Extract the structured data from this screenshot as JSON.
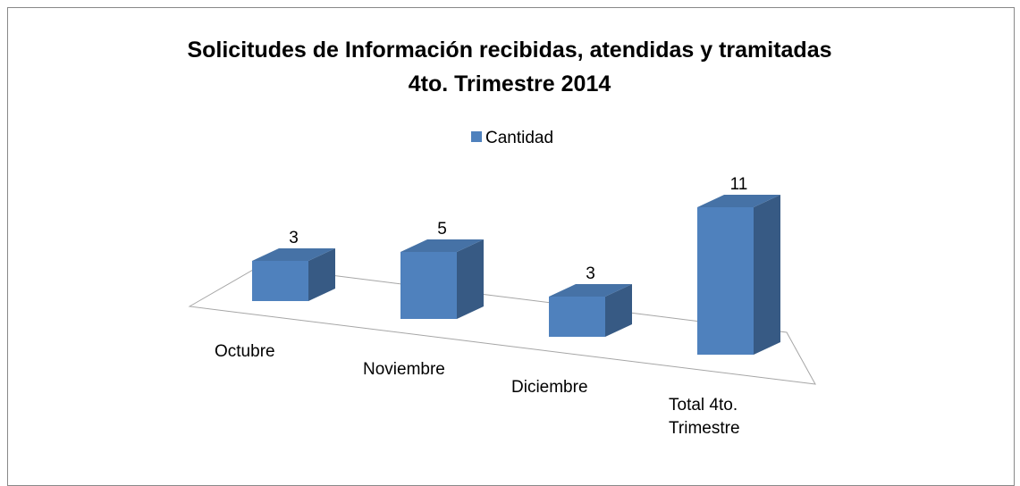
{
  "chart_data": {
    "type": "bar3d",
    "title": [
      "Solicitudes de Información recibidas, atendidas y tramitadas",
      "4to. Trimestre 2014"
    ],
    "categories": [
      "Octubre",
      "Noviembre",
      "Diciembre",
      "Total 4to. Trimestre"
    ],
    "series": [
      {
        "name": "Cantidad",
        "color": "#4f81bd",
        "values": [
          3,
          5,
          3,
          11
        ]
      }
    ],
    "legend": "top",
    "grid": false
  }
}
